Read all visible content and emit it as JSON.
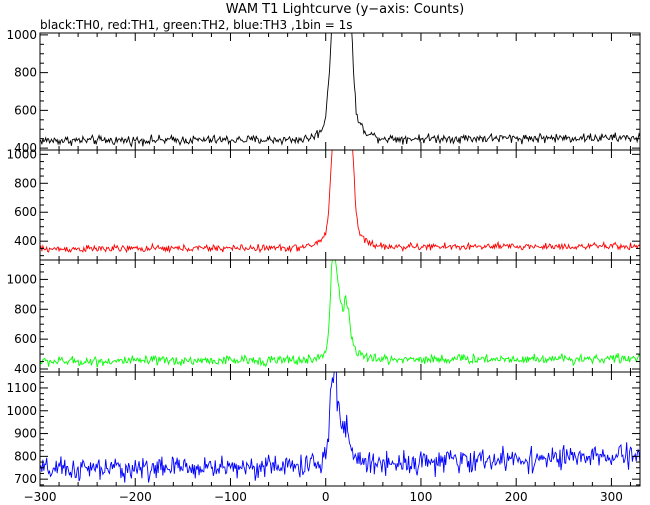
{
  "chart_data": {
    "type": "line",
    "title": "WAM T1 Lightcurve (y−axis: Counts)",
    "subtitle": "black:TH0, red:TH1, green:TH2, blue:TH3 ,1bin = 1s",
    "xlim": [
      -300,
      330
    ],
    "x_ticks": [
      -300,
      -200,
      -100,
      0,
      100,
      200,
      300
    ],
    "x_tick_labels": [
      "−300",
      "−200",
      "−100",
      "0",
      "100",
      "200",
      "300"
    ],
    "panels": [
      {
        "name": "TH0",
        "color": "#000000",
        "ylim": [
          390,
          1010
        ],
        "y_ticks": [
          400,
          600,
          800,
          1000
        ],
        "baseline": [
          [
            -300,
            440
          ],
          [
            0,
            445
          ],
          [
            40,
            450
          ],
          [
            330,
            455
          ]
        ],
        "noise": 12,
        "peaks": [
          {
            "t": 8,
            "a": 490,
            "w": 4
          },
          {
            "t": 14,
            "a": 380,
            "w": 3
          },
          {
            "t": 21,
            "a": 420,
            "w": 4
          },
          {
            "t": 26,
            "a": 360,
            "w": 3
          },
          {
            "t": 18,
            "a": 150,
            "w": 15
          }
        ]
      },
      {
        "name": "TH1",
        "color": "#ff0000",
        "ylim": [
          270,
          1030
        ],
        "y_ticks": [
          400,
          600,
          800,
          1000
        ],
        "baseline": [
          [
            -300,
            345
          ],
          [
            0,
            355
          ],
          [
            40,
            360
          ],
          [
            330,
            365
          ]
        ],
        "noise": 12,
        "peaks": [
          {
            "t": 8,
            "a": 600,
            "w": 3
          },
          {
            "t": 14,
            "a": 480,
            "w": 3
          },
          {
            "t": 21,
            "a": 520,
            "w": 4
          },
          {
            "t": 27,
            "a": 470,
            "w": 3
          },
          {
            "t": 18,
            "a": 180,
            "w": 15
          }
        ]
      },
      {
        "name": "TH2",
        "color": "#00ff00",
        "ylim": [
          380,
          1130
        ],
        "y_ticks": [
          400,
          600,
          800,
          1000
        ],
        "baseline": [
          [
            -300,
            450
          ],
          [
            0,
            460
          ],
          [
            40,
            465
          ],
          [
            330,
            470
          ]
        ],
        "noise": 16,
        "peaks": [
          {
            "t": 8,
            "a": 600,
            "w": 3
          },
          {
            "t": 14,
            "a": 260,
            "w": 3
          },
          {
            "t": 22,
            "a": 270,
            "w": 3
          },
          {
            "t": 17,
            "a": 130,
            "w": 12
          }
        ]
      },
      {
        "name": "TH3",
        "color": "#0000ff",
        "ylim": [
          670,
          1170
        ],
        "y_ticks": [
          700,
          800,
          900,
          1000,
          1100
        ],
        "baseline": [
          [
            -300,
            740
          ],
          [
            0,
            760
          ],
          [
            40,
            770
          ],
          [
            330,
            800
          ]
        ],
        "noise": 25,
        "peaks": [
          {
            "t": 8,
            "a": 380,
            "w": 3
          },
          {
            "t": 14,
            "a": 120,
            "w": 3
          },
          {
            "t": 22,
            "a": 120,
            "w": 3
          },
          {
            "t": 15,
            "a": 60,
            "w": 12
          }
        ]
      }
    ]
  }
}
